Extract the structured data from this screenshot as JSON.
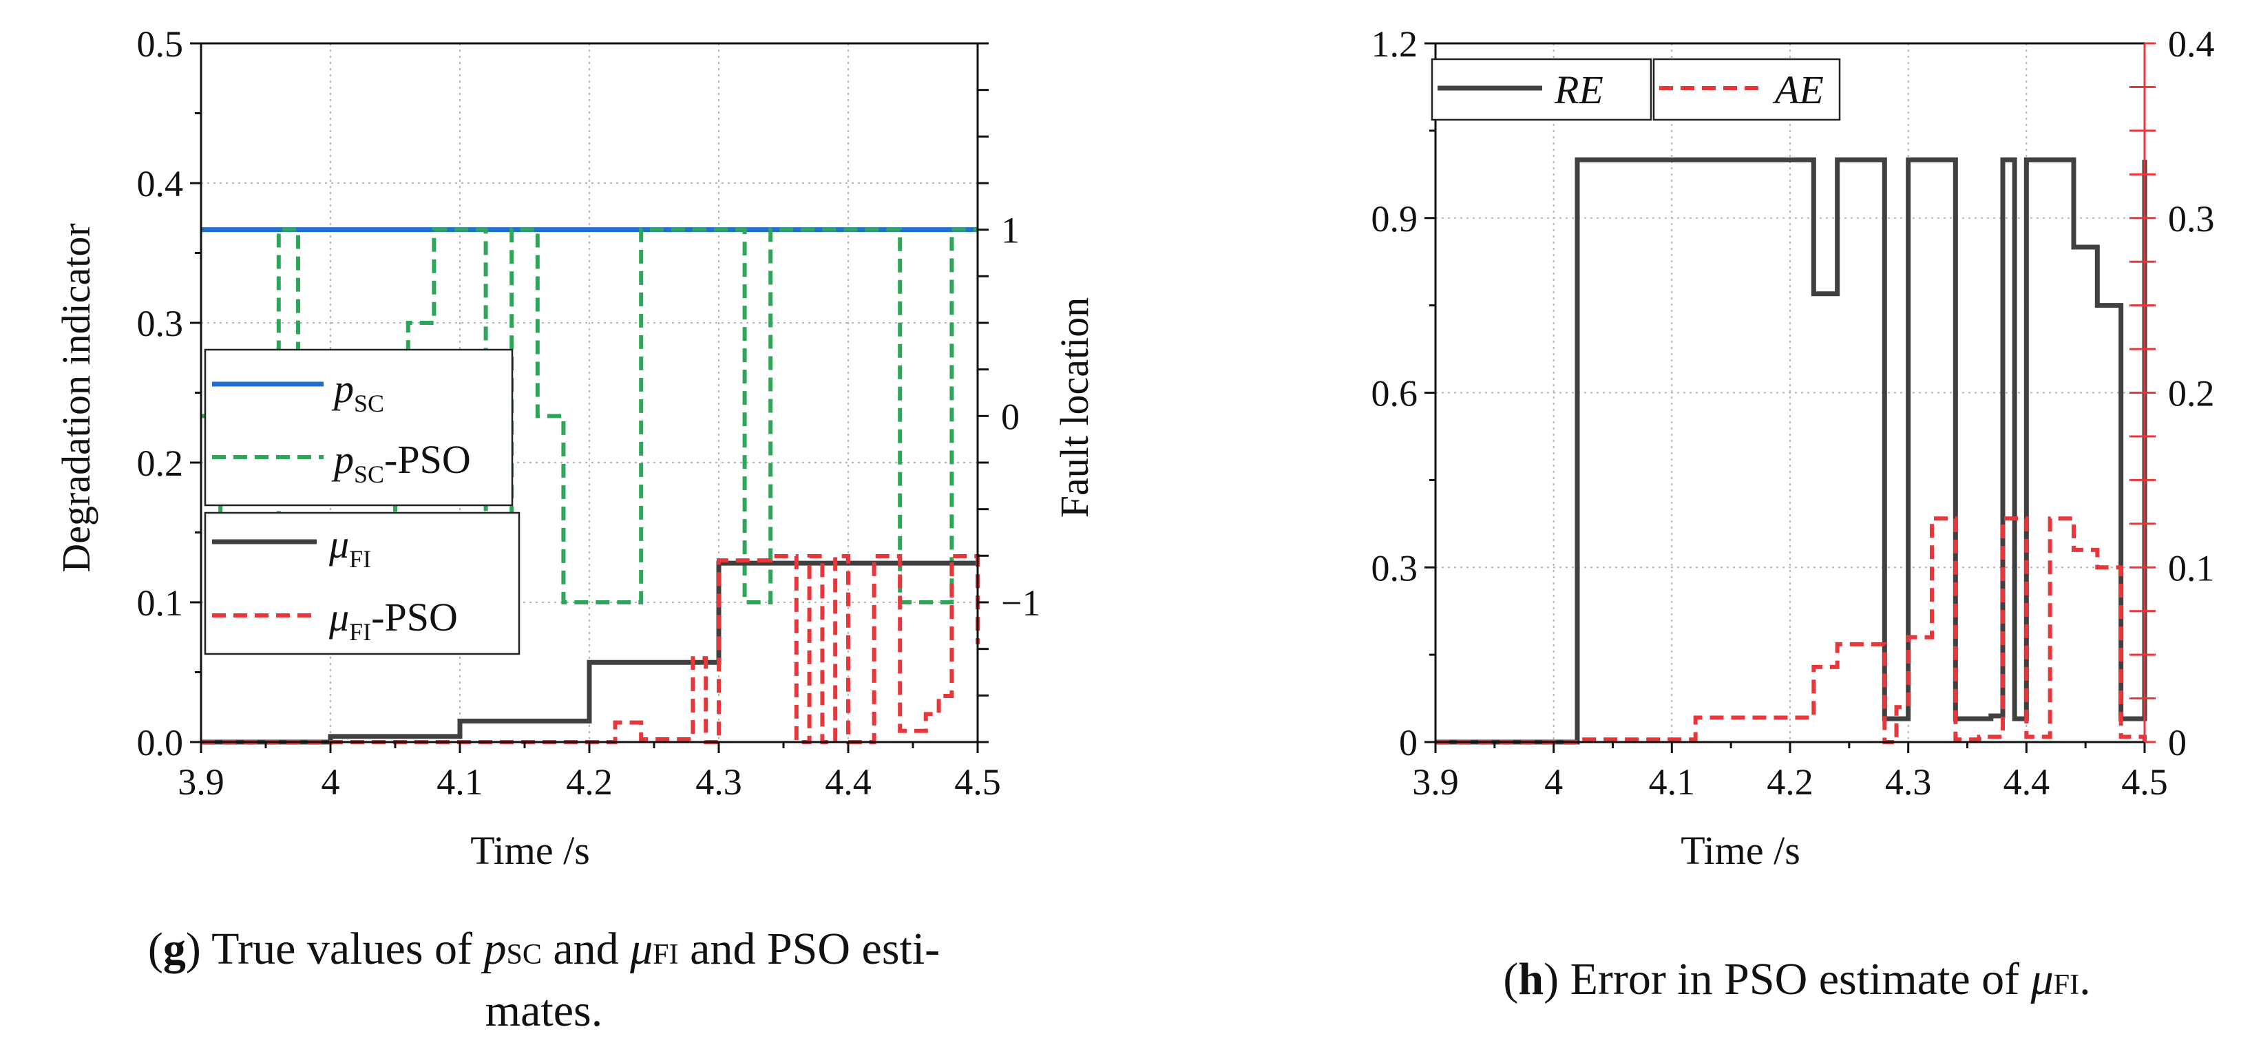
{
  "chart_data": [
    {
      "panel": "g",
      "type": "line",
      "step": true,
      "caption": {
        "letter": "g",
        "open": "(",
        "close": ")",
        "part1": "True values of ",
        "p_sym": "p",
        "p_sub": "SC",
        "part2": " and ",
        "mu_sym": "μ",
        "mu_sub": "FI",
        "part3": " and PSO esti-",
        "line2": "mates."
      },
      "xlabel": "Time /s",
      "ylabel": "Degradation indicator",
      "y2label": "Fault location",
      "xlim": [
        3.9,
        4.5
      ],
      "ylim": [
        0,
        0.5
      ],
      "y2lim": [
        -1.75,
        2.0
      ],
      "xticks": [
        "3.9",
        "4",
        "4.1",
        "4.2",
        "4.3",
        "4.4",
        "4.5"
      ],
      "xtick_values": [
        3.9,
        4.0,
        4.1,
        4.2,
        4.3,
        4.4,
        4.5
      ],
      "yticks": [
        "0.0",
        "0.1",
        "0.2",
        "0.3",
        "0.4",
        "0.5"
      ],
      "ytick_values": [
        0,
        0.1,
        0.2,
        0.3,
        0.4,
        0.5
      ],
      "y2ticks": [
        "1",
        "0",
        "−1"
      ],
      "y2tick_values": [
        1,
        0,
        -1
      ],
      "grid": true,
      "series": [
        {
          "name": "p_SC",
          "legend_sym": "p",
          "legend_sub": "SC",
          "legend_suffix": "",
          "color": "#1f6fd1",
          "dash": "none",
          "axis": "right",
          "x": [
            3.9,
            4.5
          ],
          "y": [
            1,
            1
          ]
        },
        {
          "name": "p_SC-PSO",
          "legend_sym": "p",
          "legend_sub": "SC",
          "legend_suffix": "-PSO",
          "color": "#2ea65a",
          "dash": "dashed",
          "axis": "right",
          "x": [
            3.9,
            3.915,
            3.96,
            3.975,
            4.05,
            4.06,
            4.08,
            4.12,
            4.13,
            4.14,
            4.16,
            4.17,
            4.18,
            4.24,
            4.32,
            4.34,
            4.42,
            4.44,
            4.48,
            4.5
          ],
          "y": [
            0,
            -1,
            1,
            -1,
            0,
            0.5,
            1,
            -1,
            -1,
            1,
            0,
            0,
            -1,
            1,
            -1,
            1,
            1,
            -1,
            1,
            1
          ]
        },
        {
          "name": "mu_FI",
          "legend_sym": "μ",
          "legend_sub": "FI",
          "legend_suffix": "",
          "color": "#404040",
          "dash": "none",
          "axis": "left",
          "x": [
            3.9,
            4.0,
            4.1,
            4.2,
            4.3,
            4.5
          ],
          "y": [
            0,
            0.004,
            0.015,
            0.057,
            0.128,
            0.128
          ]
        },
        {
          "name": "mu_FI-PSO",
          "legend_sym": "μ",
          "legend_sub": "FI",
          "legend_suffix": "-PSO",
          "color": "#e8363a",
          "dash": "dashed",
          "axis": "left",
          "x": [
            3.9,
            4.22,
            4.24,
            4.28,
            4.29,
            4.3,
            4.34,
            4.36,
            4.37,
            4.38,
            4.39,
            4.4,
            4.42,
            4.44,
            4.46,
            4.47,
            4.48,
            4.5
          ],
          "y": [
            0,
            0.014,
            0.002,
            0.06,
            0.0,
            0.13,
            0.133,
            0.0,
            0.133,
            0.0,
            0.133,
            0.0,
            0.133,
            0.008,
            0.02,
            0.033,
            0.133,
            0.07
          ]
        }
      ]
    },
    {
      "panel": "h",
      "type": "line",
      "step": true,
      "caption": {
        "letter": "h",
        "open": "(",
        "close": ")",
        "part1": "Error in PSO estimate of ",
        "mu_sym": "μ",
        "mu_sub": "FI",
        "part2": "."
      },
      "xlabel": "Time /s",
      "xlim": [
        3.9,
        4.5
      ],
      "ylim": [
        0,
        1.2
      ],
      "y2lim": [
        0,
        0.4
      ],
      "xticks": [
        "3.9",
        "4",
        "4.1",
        "4.2",
        "4.3",
        "4.4",
        "4.5"
      ],
      "xtick_values": [
        3.9,
        4.0,
        4.1,
        4.2,
        4.3,
        4.4,
        4.5
      ],
      "yticks": [
        "0",
        "0.3",
        "0.6",
        "0.9",
        "1.2"
      ],
      "ytick_values": [
        0,
        0.3,
        0.6,
        0.9,
        1.2
      ],
      "y2ticks": [
        "0",
        "0.1",
        "0.2",
        "0.3",
        "0.4"
      ],
      "y2tick_values": [
        0,
        0.1,
        0.2,
        0.3,
        0.4
      ],
      "right_axis_color": "#e8363a",
      "grid": true,
      "series": [
        {
          "name": "RE",
          "legend": "RE",
          "color": "#404040",
          "dash": "none",
          "axis": "left",
          "x": [
            3.9,
            4.02,
            4.22,
            4.24,
            4.28,
            4.3,
            4.34,
            4.36,
            4.37,
            4.38,
            4.39,
            4.4,
            4.42,
            4.44,
            4.46,
            4.48,
            4.5
          ],
          "y": [
            0,
            1.0,
            0.77,
            1.0,
            0.04,
            1.0,
            0.04,
            0.04,
            0.045,
            1.0,
            0.04,
            1.0,
            1.0,
            0.85,
            0.75,
            0.04,
            1.0
          ]
        },
        {
          "name": "AE",
          "legend": "AE",
          "color": "#e8363a",
          "dash": "dashed",
          "axis": "right",
          "x": [
            3.9,
            4.02,
            4.12,
            4.22,
            4.24,
            4.28,
            4.29,
            4.3,
            4.32,
            4.34,
            4.36,
            4.38,
            4.4,
            4.42,
            4.44,
            4.46,
            4.48,
            4.5
          ],
          "y": [
            0,
            0.0015,
            0.014,
            0.043,
            0.056,
            0.0,
            0.02,
            0.06,
            0.128,
            0.0015,
            0.003,
            0.128,
            0.003,
            0.128,
            0.11,
            0.1,
            0.003,
            0.0
          ]
        }
      ]
    }
  ]
}
